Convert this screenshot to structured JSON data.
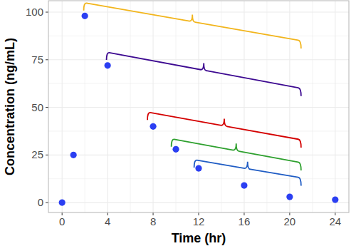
{
  "chart_data": {
    "type": "scatter",
    "x_label": "Time (hr)",
    "y_label": "Concentration (ng/mL)",
    "x": [
      0,
      1,
      2,
      4,
      8,
      10,
      12,
      16,
      20,
      24
    ],
    "values": [
      0,
      25,
      98,
      72,
      40,
      28,
      18,
      9,
      3,
      1.5
    ],
    "color": "#2b3ff2",
    "marker": "circle",
    "xlim": [
      -1.2,
      25.2
    ],
    "ylim": [
      -5.2,
      106
    ],
    "xticks": [
      0,
      4,
      8,
      12,
      16,
      20,
      24
    ],
    "yticks": [
      0,
      25,
      50,
      75,
      100
    ],
    "grid": true,
    "brackets": [
      {
        "x": [
          1.9,
          21
        ],
        "y": [
          105,
          85
        ],
        "color": "#f2b51c"
      },
      {
        "x": [
          3.9,
          21
        ],
        "y": [
          79,
          60
        ],
        "color": "#3d0a91"
      },
      {
        "x": [
          7.5,
          21
        ],
        "y": [
          47.5,
          33
        ],
        "color": "#d40000"
      },
      {
        "x": [
          9.6,
          21
        ],
        "y": [
          33.5,
          21
        ],
        "color": "#2ea02e"
      },
      {
        "x": [
          11.6,
          21
        ],
        "y": [
          22.5,
          13
        ],
        "color": "#1f5cc4"
      }
    ]
  }
}
